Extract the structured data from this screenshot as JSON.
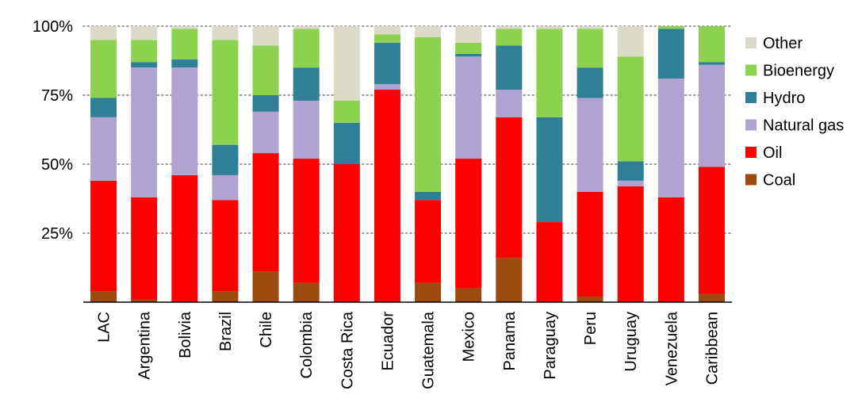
{
  "chart_data": {
    "type": "bar",
    "stacked": true,
    "title": "",
    "xlabel": "",
    "ylabel": "",
    "ylim": [
      0,
      100
    ],
    "yticks": [
      {
        "value": 25,
        "label": "25%"
      },
      {
        "value": 50,
        "label": "50%"
      },
      {
        "value": 75,
        "label": "75%"
      },
      {
        "value": 100,
        "label": "100%"
      }
    ],
    "grid": "horizontal dotted",
    "legend_position": "right",
    "categories": [
      "LAC",
      "Argentina",
      "Bolivia",
      "Brazil",
      "Chile",
      "Colombia",
      "Costa Rica",
      "Ecuador",
      "Guatemala",
      "Mexico",
      "Panama",
      "Paraguay",
      "Peru",
      "Uruguay",
      "Venezuela",
      "Caribbean"
    ],
    "series": [
      {
        "name": "Coal",
        "color": "#9c4a0e",
        "values": [
          4,
          1,
          0,
          4,
          11,
          7,
          0,
          0,
          7,
          5,
          16,
          0,
          2,
          0,
          0,
          3
        ]
      },
      {
        "name": "Oil",
        "color": "#ff0000",
        "values": [
          40,
          37,
          46,
          33,
          43,
          45,
          50,
          77,
          30,
          47,
          51,
          29,
          38,
          42,
          38,
          46
        ]
      },
      {
        "name": "Natural gas",
        "color": "#b0a3d1",
        "values": [
          23,
          47,
          39,
          9,
          15,
          21,
          0,
          2,
          0,
          37,
          10,
          0,
          34,
          2,
          43,
          37
        ]
      },
      {
        "name": "Hydro",
        "color": "#2f7f96",
        "values": [
          7,
          2,
          3,
          11,
          6,
          12,
          15,
          15,
          3,
          1,
          16,
          38,
          11,
          7,
          18,
          1
        ]
      },
      {
        "name": "Bioenergy",
        "color": "#8dd24f",
        "values": [
          21,
          8,
          11,
          38,
          18,
          14,
          8,
          3,
          56,
          4,
          6,
          32,
          14,
          38,
          1,
          13
        ]
      },
      {
        "name": "Other",
        "color": "#ddd9c8",
        "values": [
          5,
          5,
          1,
          5,
          7,
          1,
          27,
          3,
          4,
          6,
          1,
          1,
          1,
          11,
          0,
          0
        ]
      }
    ],
    "legend_order": [
      "Other",
      "Bioenergy",
      "Hydro",
      "Natural gas",
      "Oil",
      "Coal"
    ]
  }
}
